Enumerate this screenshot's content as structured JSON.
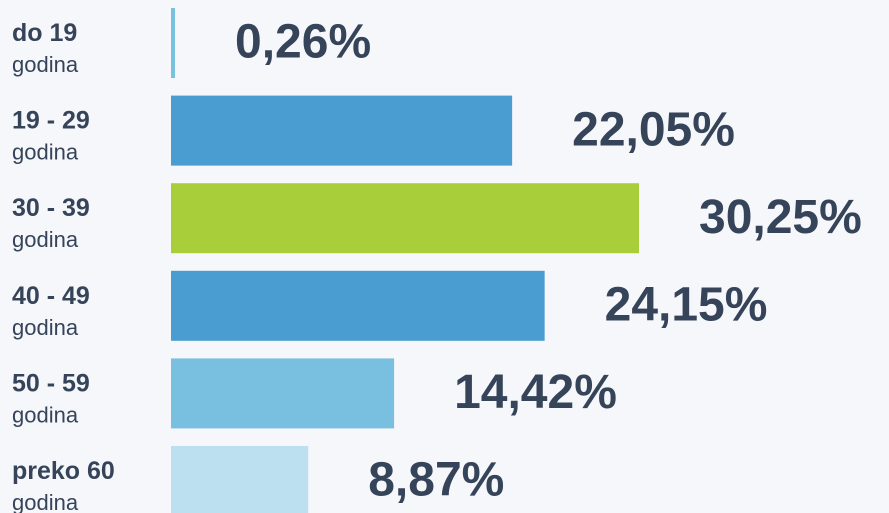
{
  "chart_data": {
    "type": "bar",
    "orientation": "horizontal",
    "categories": [
      "do 19",
      "19 - 29",
      "30 - 39",
      "40 - 49",
      "50 - 59",
      "preko 60"
    ],
    "category_sublabels": [
      "godina",
      "godina",
      "godina",
      "godina",
      "godina",
      "godina"
    ],
    "values": [
      0.26,
      22.05,
      30.25,
      24.15,
      14.42,
      8.87
    ],
    "value_labels": [
      "0,26%",
      "22,05%",
      "30,25%",
      "24,15%",
      "14,42%",
      "8,87%"
    ],
    "colors": [
      "#7ac1e0",
      "#4a9dd0",
      "#a8cf3a",
      "#4a9dd0",
      "#78bfe0",
      "#bde0f0"
    ]
  }
}
